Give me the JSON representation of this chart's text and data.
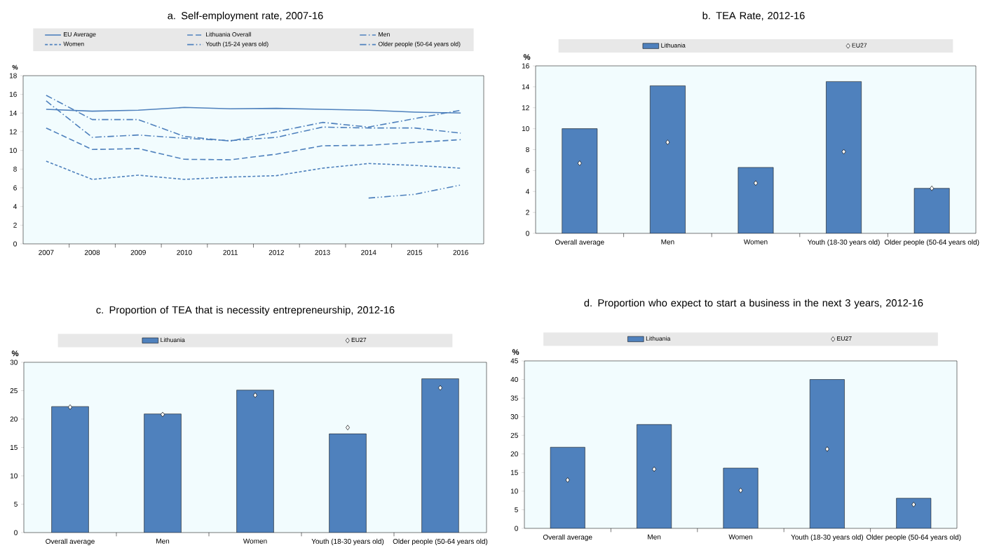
{
  "chart_data": [
    {
      "type": "line",
      "title": "a. Self-employment rate, 2007-16",
      "ylabel": "%",
      "legend": "top",
      "categories": [
        "2007",
        "2008",
        "2009",
        "2010",
        "2011",
        "2012",
        "2013",
        "2014",
        "2015",
        "2016"
      ],
      "ylim": [
        0,
        18
      ],
      "yticks": [
        0,
        2,
        4,
        6,
        8,
        10,
        12,
        14,
        16,
        18
      ],
      "series": [
        {
          "name": "EU Average",
          "color": "#4f81bd",
          "line_style": "solid",
          "values": [
            14.4,
            14.2,
            14.3,
            14.6,
            14.45,
            14.5,
            14.4,
            14.3,
            14.1,
            14.0
          ]
        },
        {
          "name": "Lithuania Overall",
          "color": "#4f81bd",
          "line_style": "longdashed",
          "values": [
            12.4,
            10.1,
            10.2,
            9.05,
            9.0,
            9.6,
            10.5,
            10.55,
            10.85,
            11.15
          ]
        },
        {
          "name": "Men",
          "color": "#4f81bd",
          "line_style": "dashdot",
          "values": [
            15.9,
            13.3,
            13.3,
            11.5,
            11.0,
            12.0,
            13.0,
            12.5,
            13.4,
            14.3
          ]
        },
        {
          "name": "Women",
          "color": "#4f81bd",
          "line_style": "dashed",
          "values": [
            8.85,
            6.9,
            7.35,
            6.9,
            7.15,
            7.3,
            8.1,
            8.6,
            8.4,
            8.1
          ]
        },
        {
          "name": "Youth (15-24 years old)",
          "color": "#4f81bd",
          "line_style": "dashdotdot",
          "values": [
            null,
            null,
            null,
            null,
            null,
            null,
            null,
            4.9,
            5.3,
            6.3
          ]
        },
        {
          "name": "Older people (50-64 years old)",
          "color": "#4f81bd",
          "line_style": "dashdot",
          "values": [
            15.3,
            11.4,
            11.65,
            11.3,
            11.05,
            11.4,
            12.5,
            12.4,
            12.4,
            11.85
          ]
        }
      ]
    },
    {
      "type": "bar",
      "title": "b. TEA Rate, 2012-16",
      "ylabel": "%",
      "legend": "top",
      "categories": [
        "Overall average",
        "Men",
        "Women",
        "Youth (18-30 years old)",
        "Older people (50-64 years old)"
      ],
      "ylim": [
        0,
        16
      ],
      "yticks": [
        0,
        2,
        4,
        6,
        8,
        10,
        12,
        14,
        16
      ],
      "series": [
        {
          "name": "Lithuania",
          "color": "#4f81bd",
          "values": [
            10.0,
            14.1,
            6.3,
            14.5,
            4.3
          ]
        },
        {
          "name": "EU27",
          "type": "scatter",
          "marker": "diamond",
          "color": "#ffffff",
          "values": [
            6.7,
            8.7,
            4.8,
            7.8,
            4.3
          ]
        }
      ]
    },
    {
      "type": "bar",
      "title": "c. Proportion of TEA that is necessity entrepreneurship, 2012-16",
      "ylabel": "%",
      "legend": "top",
      "categories": [
        "Overall average",
        "Men",
        "Women",
        "Youth (18-30 years old)",
        "Older people (50-64 years old)"
      ],
      "ylim": [
        0,
        30
      ],
      "yticks": [
        0,
        5,
        10,
        15,
        20,
        25,
        30
      ],
      "series": [
        {
          "name": "Lithuania",
          "color": "#4f81bd",
          "values": [
            22.2,
            20.9,
            25.1,
            17.4,
            27.1
          ]
        },
        {
          "name": "EU27",
          "type": "scatter",
          "marker": "diamond",
          "color": "#ffffff",
          "values": [
            22.1,
            20.8,
            24.2,
            18.5,
            25.5
          ]
        }
      ]
    },
    {
      "type": "bar",
      "title": "d. Proportion who expect to start a business in the next 3 years, 2012-16",
      "ylabel": "%",
      "legend": "top",
      "categories": [
        "Overall average",
        "Men",
        "Women",
        "Youth (18-30 years old)",
        "Older people (50-64 years old)"
      ],
      "ylim": [
        0,
        45
      ],
      "yticks": [
        0,
        5,
        10,
        15,
        20,
        25,
        30,
        35,
        40,
        45
      ],
      "series": [
        {
          "name": "Lithuania",
          "color": "#4f81bd",
          "values": [
            21.8,
            27.9,
            16.2,
            40.0,
            8.1
          ]
        },
        {
          "name": "EU27",
          "type": "scatter",
          "marker": "diamond",
          "color": "#ffffff",
          "values": [
            13.0,
            15.9,
            10.2,
            21.3,
            6.4
          ]
        }
      ]
    }
  ]
}
